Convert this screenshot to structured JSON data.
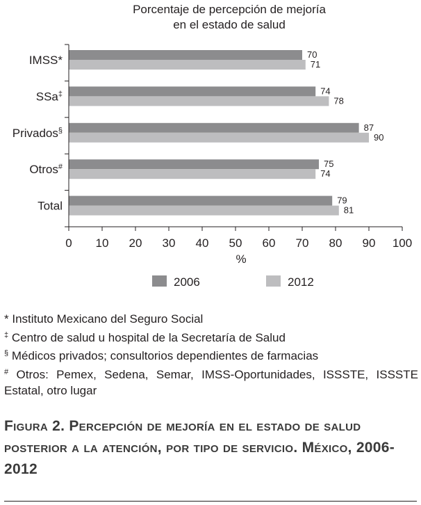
{
  "chart_data": {
    "type": "bar",
    "orientation": "horizontal",
    "title": "Porcentaje de percepción de mejoría\nen el estado de salud",
    "categories": [
      {
        "name": "IMSS",
        "mark": "*"
      },
      {
        "name": "SSa",
        "mark": "‡"
      },
      {
        "name": "Privados",
        "mark": "§"
      },
      {
        "name": "Otros",
        "mark": "#"
      },
      {
        "name": "Total",
        "mark": ""
      }
    ],
    "series": [
      {
        "name": "2006",
        "color": "#8c8c8e",
        "values": [
          70,
          74,
          87,
          75,
          79
        ]
      },
      {
        "name": "2012",
        "color": "#bdbdbf",
        "values": [
          71,
          78,
          90,
          74,
          81
        ]
      }
    ],
    "xlabel": "%",
    "ylabel": "",
    "xlim": [
      0,
      100
    ],
    "xticks": [
      0,
      10,
      20,
      30,
      40,
      50,
      60,
      70,
      80,
      90,
      100
    ],
    "grid": false,
    "legend_position": "bottom"
  },
  "footnotes": [
    {
      "mark": "*",
      "text": " Instituto Mexicano del Seguro Social"
    },
    {
      "mark": "‡",
      "text": " Centro de salud u hospital de la Secretaría de Salud"
    },
    {
      "mark": "§",
      "text": " Médicos privados; consultorios dependientes de farmacias"
    },
    {
      "mark": "#",
      "text": "  Otros: Pemex, Sedena, Semar, IMSS-Oportunidades, ISSSTE, ISSSTE Estatal, otro lugar"
    }
  ],
  "caption": "Figura 2. Percepción de mejoría en el estado de salud posterior a la atención, por tipo de servicio. México, 2006-2012"
}
